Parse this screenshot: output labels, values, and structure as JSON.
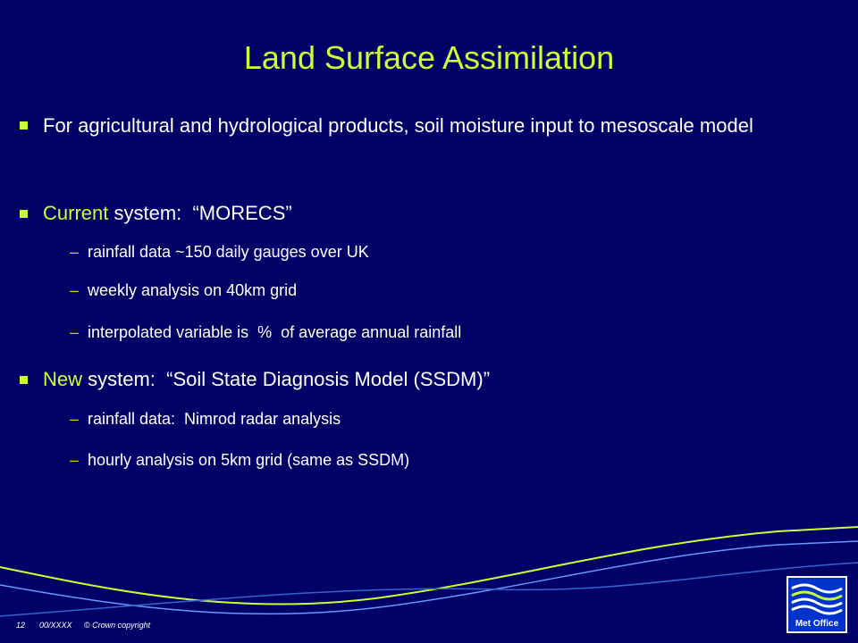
{
  "title": "Land Surface Assimilation",
  "bullets": [
    {
      "text": "For agricultural and hydrological products, soil moisture input to mesoscale model"
    },
    {
      "lead": "Current",
      "text": " system:  “MORECS”",
      "sub": [
        "rainfall data ~150 daily gauges over UK",
        "weekly analysis on 40km grid",
        "interpolated variable is  %  of average annual rainfall"
      ]
    },
    {
      "lead": "New",
      "text": " system:  “Soil State Diagnosis Model (SSDM)”",
      "sub": [
        "rainfall data:  Nimrod radar analysis",
        "hourly analysis on 5km grid (same as SSDM)"
      ]
    }
  ],
  "footer": {
    "page": "12",
    "ref": "00/XXXX",
    "copyright": "© Crown copyright"
  },
  "logo": "Met Office"
}
